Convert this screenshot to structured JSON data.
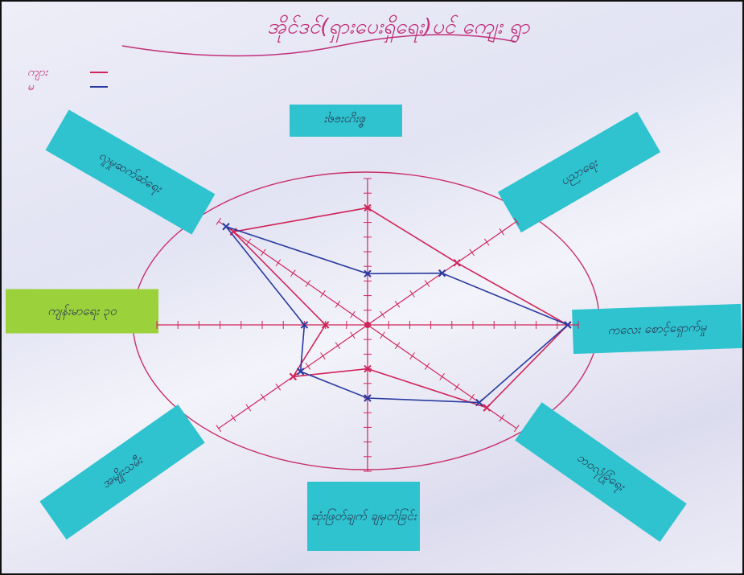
{
  "title": "အိုင်ဒင်(ရှားပေးရှိရေး)ပင် ကျေး ရွာ",
  "legend": [
    {
      "label": "ကျား",
      "color": "#d0245a"
    },
    {
      "label": "မ",
      "color": "#2a3aa0"
    }
  ],
  "chart_data": {
    "type": "radar",
    "categories": [
      "စီးပွားရေး",
      "ပညာရေး",
      "ကလေး စောင့်ရှောက်မှု",
      "ဘဝလုံခြုံရေး",
      "ဆုံးဖြတ်ချက် ချမှတ်ခြင်း",
      "အမျိုးသမီး",
      "ကျန်းမာရေး ၃၀",
      "လူမှုဆက်ဆံရေး"
    ],
    "rlim": [
      0,
      10
    ],
    "rticks": [
      1,
      2,
      3,
      4,
      5,
      6,
      7,
      8,
      9,
      10
    ],
    "series": [
      {
        "name": "ကျား",
        "color": "#d0245a",
        "values": [
          8,
          6,
          9.5,
          8,
          3,
          5,
          2,
          9
        ]
      },
      {
        "name": "မ",
        "color": "#2a3aa0",
        "values": [
          3.5,
          5,
          9.5,
          7.5,
          5,
          4.5,
          3,
          9.5
        ]
      }
    ]
  }
}
